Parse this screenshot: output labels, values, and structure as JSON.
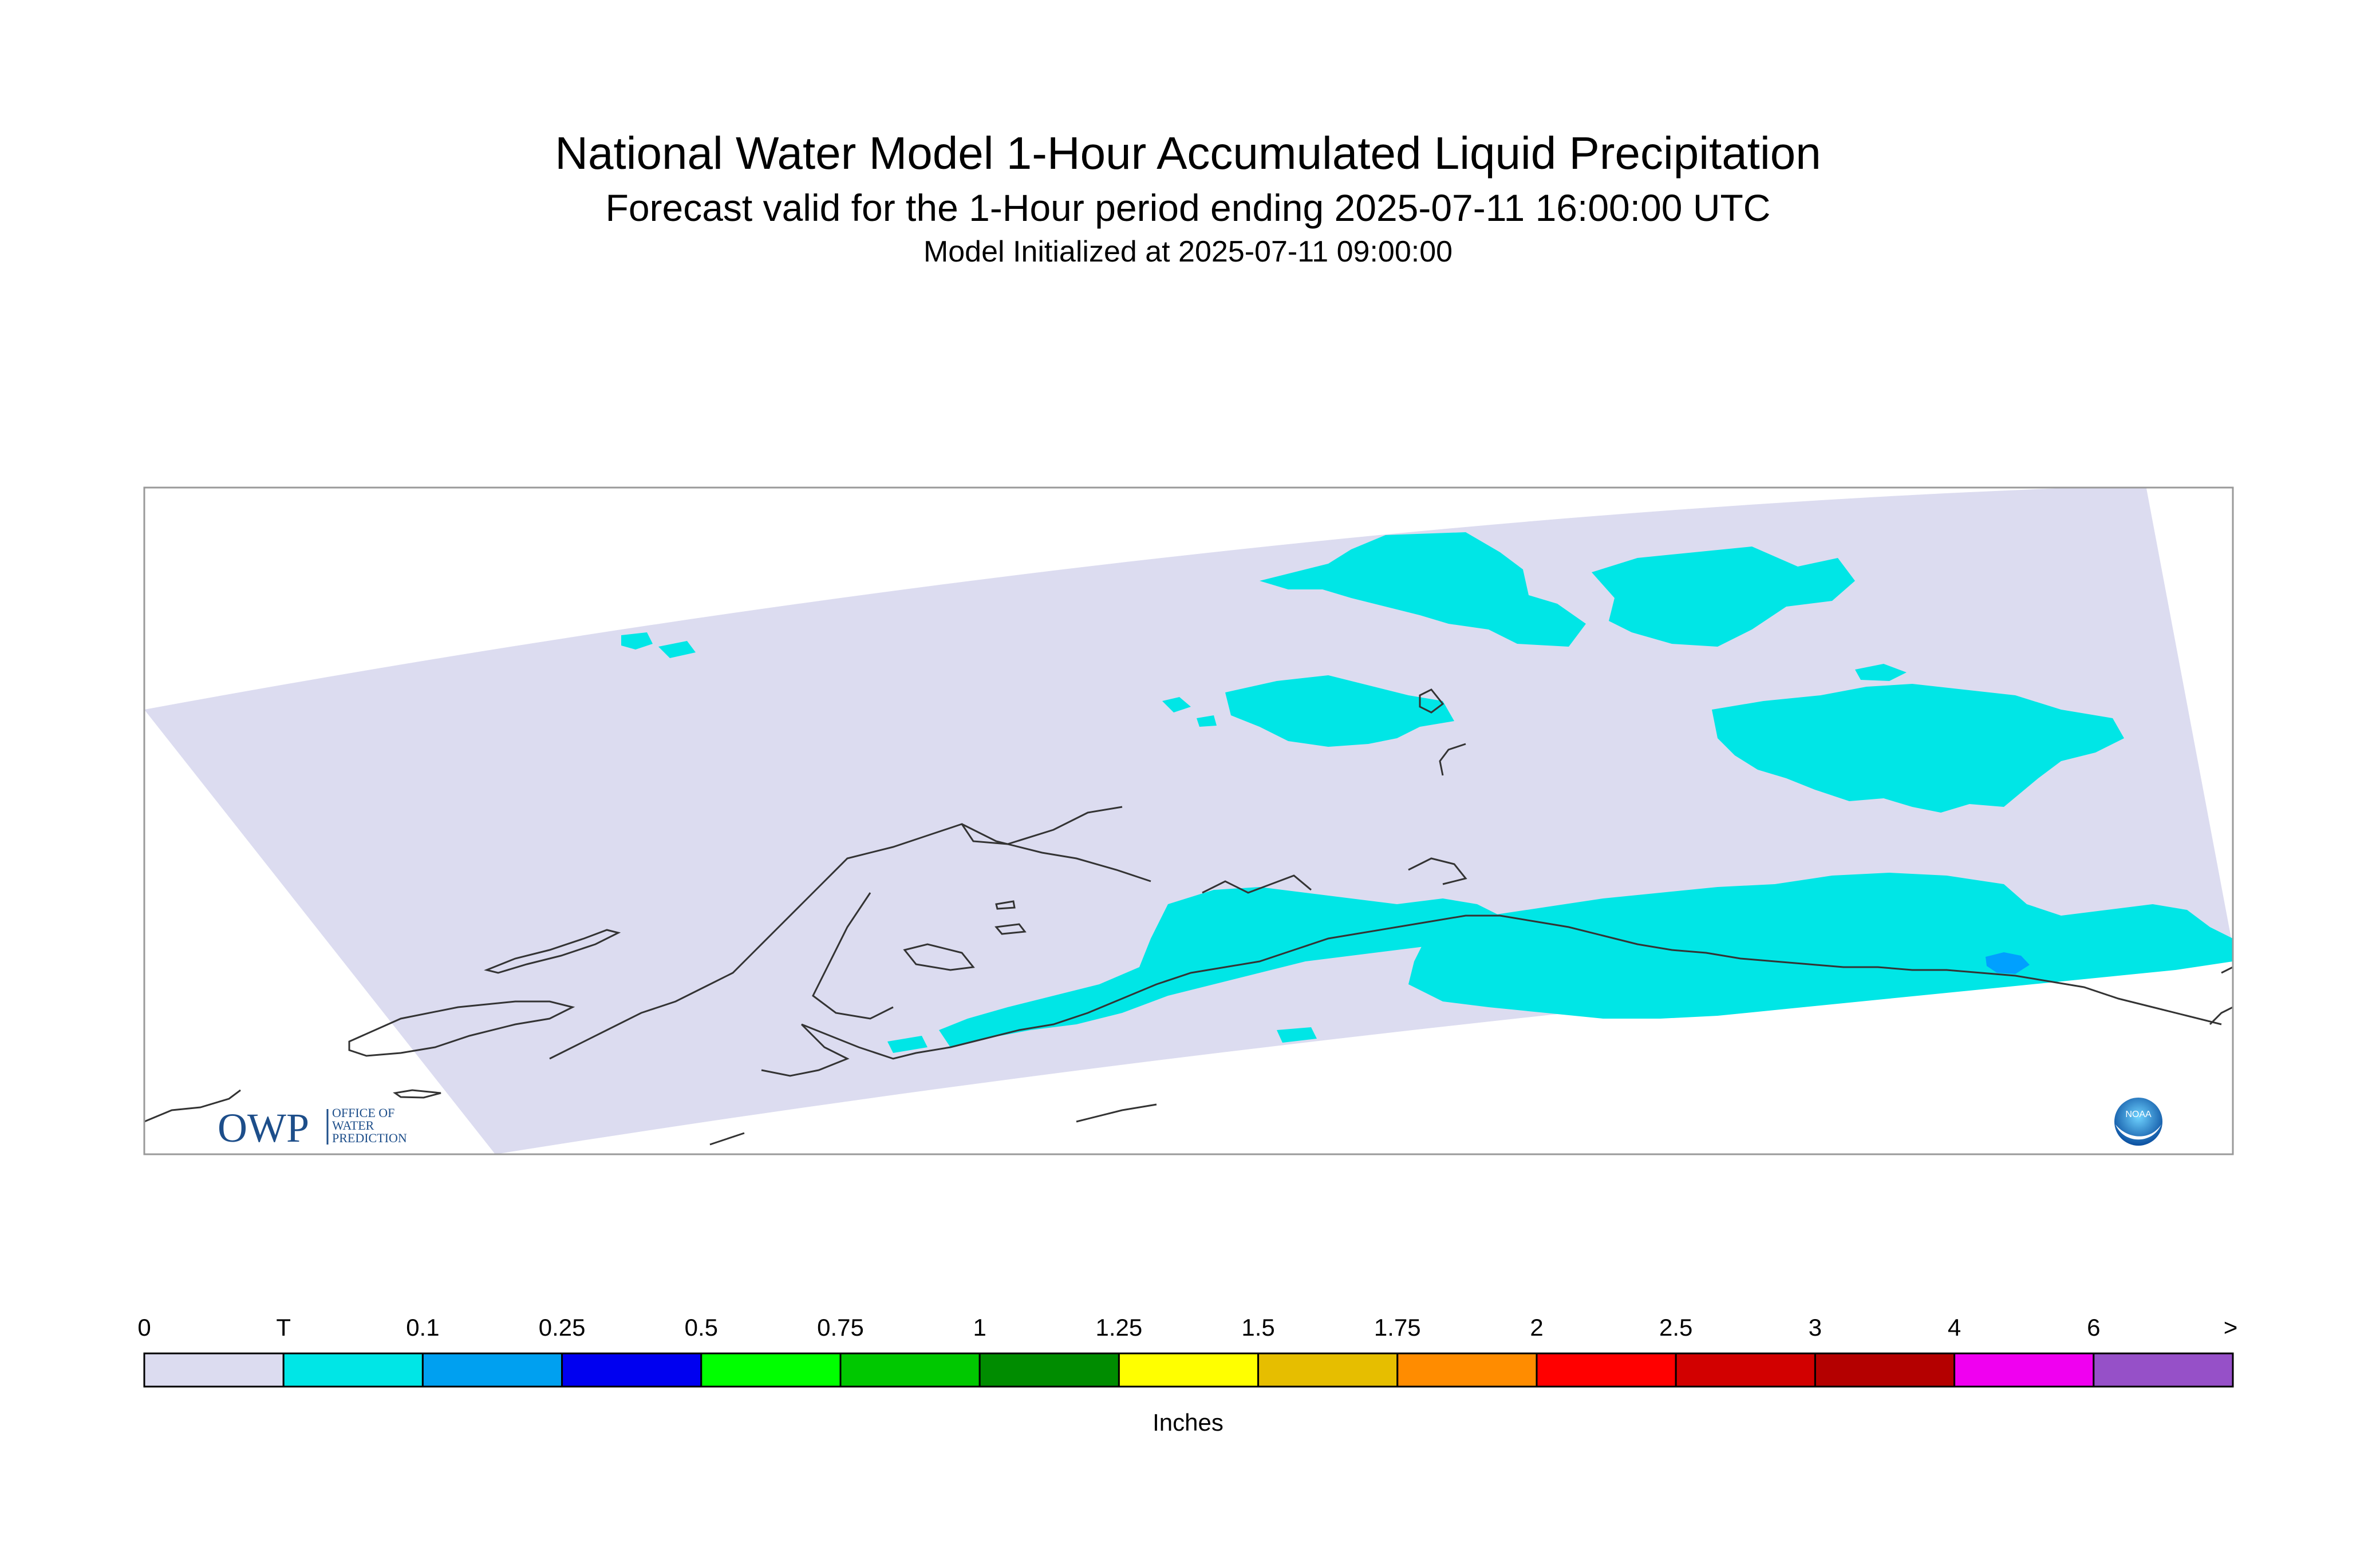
{
  "title": "National Water Model 1-Hour Accumulated Liquid Precipitation",
  "subtitle": "Forecast valid for the 1-Hour period ending 2025-07-11 16:00:00 UTC",
  "init_line": "Model Initialized at 2025-07-11 09:00:00",
  "colors": {
    "domain": "#dcdcf0",
    "trace": "#00e6e6",
    "light": "#00a0ff",
    "coast": "#333333",
    "frame": "#999999"
  },
  "colorbar": {
    "labels": [
      "0",
      "T",
      "0.1",
      "0.25",
      "0.5",
      "0.75",
      "1",
      "1.25",
      "1.5",
      "1.75",
      "2",
      "2.5",
      "3",
      "4",
      "6",
      ">"
    ],
    "colors": [
      "#dcdcf0",
      "#00e6e6",
      "#00a0f0",
      "#0000f0",
      "#00ff00",
      "#00c800",
      "#008c00",
      "#ffff00",
      "#e6be00",
      "#ff8c00",
      "#ff0000",
      "#d20000",
      "#b40000",
      "#f000f0",
      "#9650c8"
    ],
    "units": "Inches"
  },
  "logos": {
    "owp_text": "OWP",
    "owp_sub": [
      "OFFICE OF",
      "WATER",
      "PREDICTION"
    ],
    "noaa_text": "NOAA"
  }
}
